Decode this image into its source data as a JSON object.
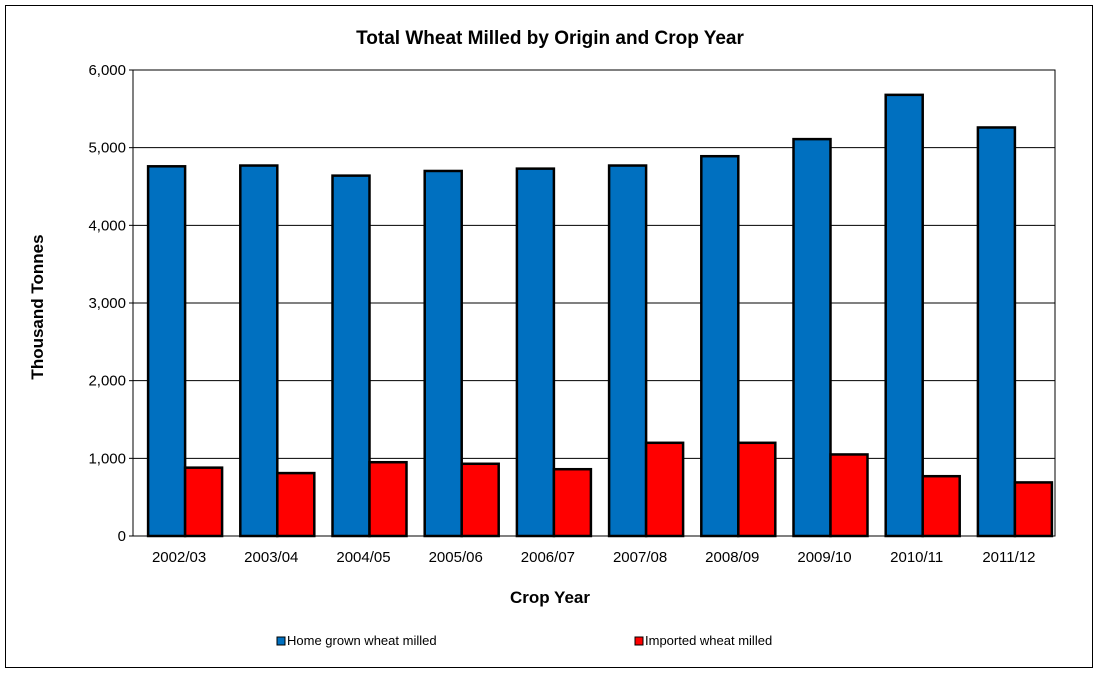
{
  "chart_data": {
    "type": "bar",
    "title": "Total Wheat Milled by Origin and Crop Year",
    "xlabel": "Crop Year",
    "ylabel": "Thousand Tonnes",
    "ylim": [
      0,
      6000
    ],
    "yticks": [
      "0",
      "1,000",
      "2,000",
      "3,000",
      "4,000",
      "5,000",
      "6,000"
    ],
    "categories": [
      "2002/03",
      "2003/04",
      "2004/05",
      "2005/06",
      "2006/07",
      "2007/08",
      "2008/09",
      "2009/10",
      "2010/11",
      "2011/12"
    ],
    "series": [
      {
        "name": "Home grown wheat milled",
        "color": "#0070c0",
        "values": [
          4760,
          4770,
          4640,
          4700,
          4730,
          4770,
          4890,
          5110,
          5680,
          5260
        ]
      },
      {
        "name": "Imported wheat milled",
        "color": "#ff0000",
        "values": [
          880,
          810,
          950,
          930,
          860,
          1200,
          1200,
          1050,
          770,
          690
        ]
      }
    ],
    "grid": true,
    "legend": "bottom"
  }
}
